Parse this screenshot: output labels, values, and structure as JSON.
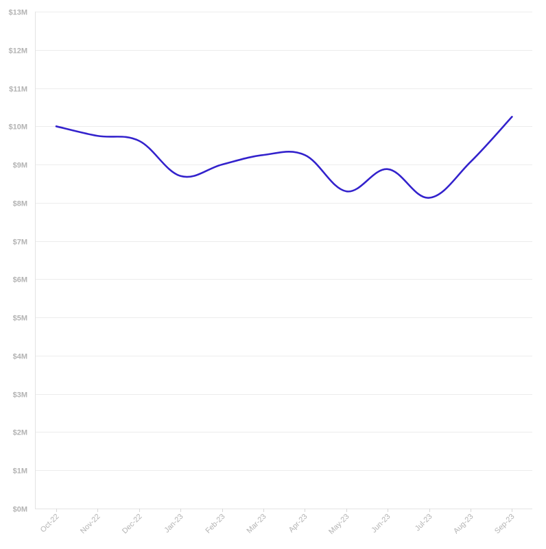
{
  "chart_data": {
    "type": "line",
    "title": "",
    "xlabel": "",
    "ylabel": "",
    "categories": [
      "Oct-22",
      "Nov-22",
      "Dec-22",
      "Jan-23",
      "Feb-23",
      "Mar-23",
      "Apr-23",
      "May-23",
      "Jun-23",
      "Jul-23",
      "Aug-23",
      "Sep-23"
    ],
    "series": [
      {
        "values": [
          10.0,
          9.75,
          9.62,
          8.7,
          9.0,
          9.25,
          9.25,
          8.3,
          8.88,
          8.13,
          9.07,
          10.25
        ],
        "color": "#3322cc"
      }
    ],
    "ylim": [
      0,
      13
    ],
    "y_ticks": [
      0,
      1,
      2,
      3,
      4,
      5,
      6,
      7,
      8,
      9,
      10,
      11,
      12,
      13
    ],
    "y_tick_labels": [
      "$0M",
      "$1M",
      "$2M",
      "$3M",
      "$4M",
      "$5M",
      "$6M",
      "$7M",
      "$8M",
      "$9M",
      "$10M",
      "$11M",
      "$12M",
      "$13M"
    ],
    "grid": true,
    "legend": "none",
    "curve": "smooth"
  }
}
